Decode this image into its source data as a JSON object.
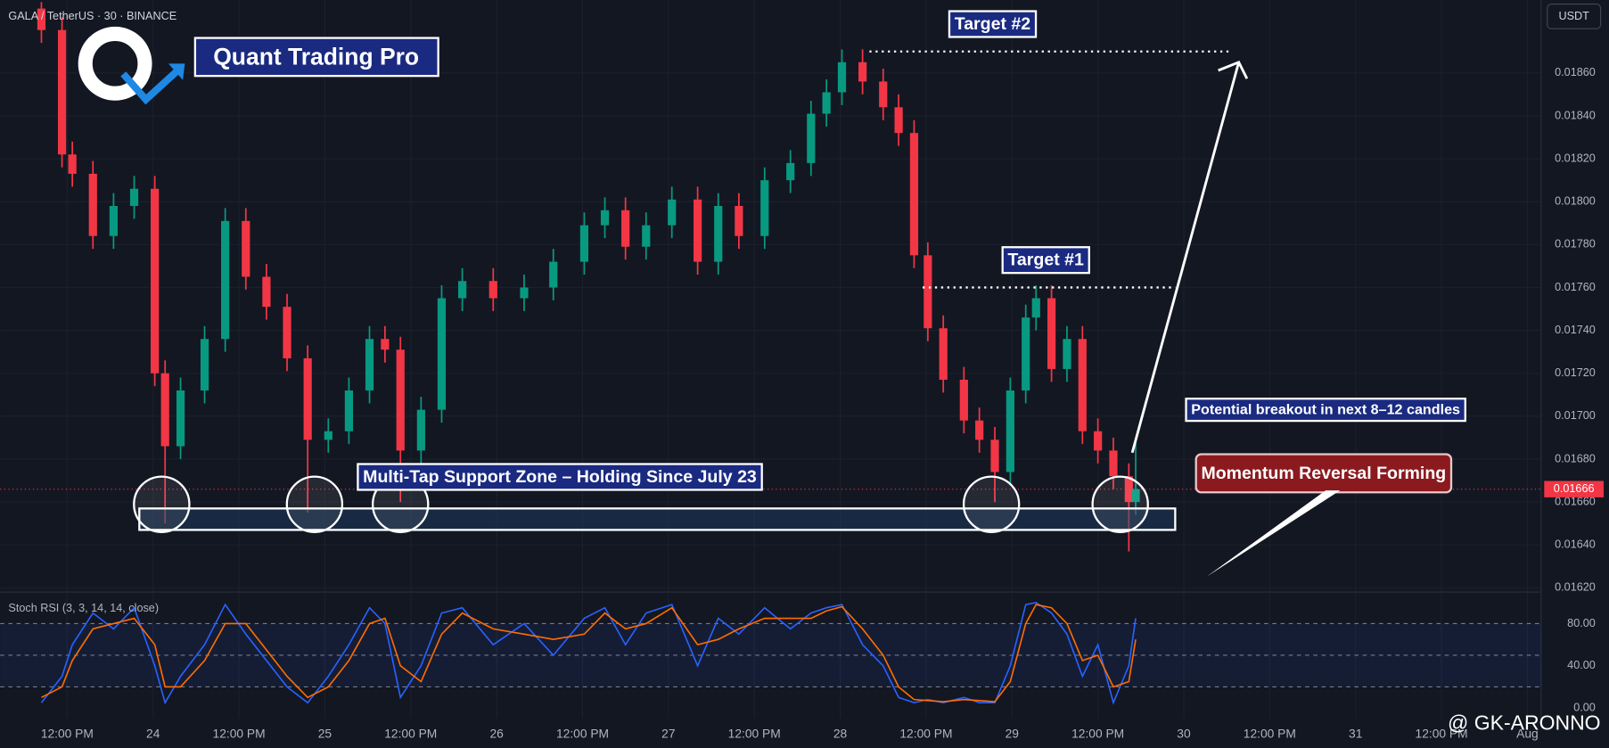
{
  "chart_data": [
    {
      "type": "candlestick",
      "title": "GALA / TetherUS · 30 · BINANCE",
      "brand": "Quant Trading Pro",
      "currency": "USDT",
      "watermark": "@ GK-ARONNO",
      "x": [
        23.35,
        23.47,
        23.53,
        23.65,
        23.77,
        23.89,
        24.01,
        24.07,
        24.16,
        24.3,
        24.42,
        24.54,
        24.66,
        24.78,
        24.9,
        25.02,
        25.14,
        25.26,
        25.35,
        25.44,
        25.56,
        25.68,
        25.8,
        25.98,
        26.16,
        26.33,
        26.51,
        26.63,
        26.75,
        26.87,
        27.02,
        27.17,
        27.29,
        27.41,
        27.56,
        27.71,
        27.83,
        27.92,
        28.01,
        28.13,
        28.25,
        28.34,
        28.43,
        28.51,
        28.6,
        28.72,
        28.81,
        28.9,
        28.99,
        29.08,
        29.14,
        29.23,
        29.32,
        29.41,
        29.5,
        29.59,
        29.68,
        29.72
      ],
      "open": [
        0.0189,
        0.0188,
        0.01822,
        0.01813,
        0.01784,
        0.01798,
        0.01806,
        0.0172,
        0.01686,
        0.01712,
        0.01736,
        0.01791,
        0.01765,
        0.01751,
        0.01727,
        0.01689,
        0.01693,
        0.01712,
        0.01736,
        0.01731,
        0.01684,
        0.01703,
        0.01755,
        0.01763,
        0.01755,
        0.0176,
        0.01772,
        0.01789,
        0.01796,
        0.01779,
        0.01789,
        0.01801,
        0.01772,
        0.01798,
        0.01784,
        0.0181,
        0.01818,
        0.01841,
        0.01851,
        0.01865,
        0.01856,
        0.01844,
        0.01832,
        0.01775,
        0.01741,
        0.01717,
        0.01698,
        0.01689,
        0.01674,
        0.01712,
        0.01746,
        0.01755,
        0.01722,
        0.01736,
        0.01693,
        0.01684,
        0.01672,
        0.0166
      ],
      "high": [
        0.01893,
        0.01886,
        0.01828,
        0.01819,
        0.01804,
        0.01812,
        0.01812,
        0.01726,
        0.01718,
        0.01742,
        0.01797,
        0.01797,
        0.01771,
        0.01757,
        0.01733,
        0.01699,
        0.01718,
        0.01742,
        0.01742,
        0.01737,
        0.01709,
        0.01761,
        0.01769,
        0.01769,
        0.01766,
        0.01778,
        0.01795,
        0.01802,
        0.01802,
        0.01795,
        0.01807,
        0.01807,
        0.01804,
        0.01804,
        0.01816,
        0.01824,
        0.01847,
        0.01857,
        0.01871,
        0.01871,
        0.01862,
        0.0185,
        0.01838,
        0.01781,
        0.01747,
        0.01723,
        0.01704,
        0.01695,
        0.01718,
        0.01752,
        0.01761,
        0.01761,
        0.01742,
        0.01742,
        0.01699,
        0.0169,
        0.01678,
        0.0169
      ],
      "low": [
        0.01874,
        0.01816,
        0.01807,
        0.01778,
        0.01778,
        0.01792,
        0.01714,
        0.0165,
        0.0168,
        0.01706,
        0.0173,
        0.01759,
        0.01745,
        0.01721,
        0.01655,
        0.01683,
        0.01687,
        0.01706,
        0.01725,
        0.0166,
        0.01678,
        0.01697,
        0.01749,
        0.01749,
        0.01749,
        0.01754,
        0.01766,
        0.01783,
        0.01773,
        0.01773,
        0.01783,
        0.01766,
        0.01766,
        0.01778,
        0.01778,
        0.01804,
        0.01812,
        0.01835,
        0.01845,
        0.0185,
        0.01838,
        0.01826,
        0.01769,
        0.01735,
        0.01711,
        0.01692,
        0.01683,
        0.0166,
        0.01668,
        0.01706,
        0.0174,
        0.01716,
        0.01716,
        0.01687,
        0.01678,
        0.01666,
        0.01637,
        0.01654
      ],
      "close": [
        0.0188,
        0.01822,
        0.01813,
        0.01784,
        0.01798,
        0.01806,
        0.0172,
        0.01686,
        0.01712,
        0.01736,
        0.01791,
        0.01765,
        0.01751,
        0.01727,
        0.01689,
        0.01693,
        0.01712,
        0.01736,
        0.01731,
        0.01684,
        0.01703,
        0.01755,
        0.01763,
        0.01755,
        0.0176,
        0.01772,
        0.01789,
        0.01796,
        0.01779,
        0.01789,
        0.01801,
        0.01772,
        0.01798,
        0.01784,
        0.0181,
        0.01818,
        0.01841,
        0.01851,
        0.01865,
        0.01856,
        0.01844,
        0.01832,
        0.01775,
        0.01741,
        0.01717,
        0.01698,
        0.01689,
        0.01674,
        0.01712,
        0.01746,
        0.01755,
        0.01722,
        0.01736,
        0.01693,
        0.01684,
        0.01672,
        0.0166,
        0.01666
      ],
      "up_color": "#089981",
      "down_color": "#f23645",
      "xlim": [
        23.11,
        32.08
      ],
      "xticks": [
        {
          "value": 23.5,
          "label": "12:00 PM"
        },
        24,
        {
          "value": 24.5,
          "label": "12:00 PM"
        },
        25,
        {
          "value": 25.5,
          "label": "12:00 PM"
        },
        26,
        {
          "value": 26.5,
          "label": "12:00 PM"
        },
        27,
        {
          "value": 27.5,
          "label": "12:00 PM"
        },
        28,
        {
          "value": 28.5,
          "label": "12:00 PM"
        },
        29,
        {
          "value": 29.5,
          "label": "12:00 PM"
        },
        30,
        {
          "value": 30.5,
          "label": "12:00 PM"
        },
        31,
        {
          "value": 31.5,
          "label": "12:00 PM"
        },
        {
          "value": 32,
          "label": "Aug"
        }
      ],
      "ylim": [
        0.01619,
        0.01894
      ],
      "yticks": [
        {
          "value": 0.0162,
          "label": "0.01620"
        },
        {
          "value": 0.0164,
          "label": "0.01640"
        },
        {
          "value": 0.0166,
          "label": "0.01660"
        },
        {
          "value": 0.0168,
          "label": "0.01680"
        },
        {
          "value": 0.017,
          "label": "0.01700"
        },
        {
          "value": 0.0172,
          "label": "0.01720"
        },
        {
          "value": 0.0174,
          "label": "0.01740"
        },
        {
          "value": 0.0176,
          "label": "0.01760"
        },
        {
          "value": 0.0178,
          "label": "0.01780"
        },
        {
          "value": 0.018,
          "label": "0.01800"
        },
        {
          "value": 0.0182,
          "label": "0.01820"
        },
        {
          "value": 0.0184,
          "label": "0.01840"
        },
        {
          "value": 0.0186,
          "label": "0.01860"
        }
      ],
      "grid": true,
      "last_price": 0.01666,
      "targets": [
        {
          "label": "Target #2",
          "value": 0.0187,
          "x_range": [
            28.17,
            30.27
          ]
        },
        {
          "label": "Target #1",
          "value": 0.0176,
          "x_range": [
            28.48,
            29.95
          ]
        }
      ],
      "support_zone": {
        "label": "Multi-Tap Support Zone – Holding Since July 23",
        "range": [
          0.01647,
          0.01657
        ],
        "x_range": [
          23.92,
          29.95
        ],
        "touches": [
          24.05,
          24.94,
          25.44,
          28.88,
          29.63
        ]
      },
      "breakout_arrow": {
        "label": "Potential breakout in next 8–12 candles",
        "from": [
          29.7,
          0.01683
        ],
        "to": [
          30.32,
          0.01865
        ]
      },
      "reversal_label": "Momentum Reversal Forming"
    },
    {
      "type": "line",
      "title": "Stoch RSI (3, 3, 14, 14, close)",
      "x": [
        23.35,
        23.47,
        23.53,
        23.65,
        23.77,
        23.89,
        24.01,
        24.07,
        24.16,
        24.3,
        24.42,
        24.54,
        24.66,
        24.78,
        24.9,
        25.02,
        25.14,
        25.26,
        25.35,
        25.44,
        25.56,
        25.68,
        25.8,
        25.98,
        26.16,
        26.33,
        26.51,
        26.63,
        26.75,
        26.87,
        27.02,
        27.17,
        27.29,
        27.41,
        27.56,
        27.71,
        27.83,
        27.92,
        28.01,
        28.13,
        28.25,
        28.34,
        28.43,
        28.51,
        28.6,
        28.72,
        28.81,
        28.9,
        28.99,
        29.08,
        29.14,
        29.23,
        29.32,
        29.41,
        29.5,
        29.59,
        29.68,
        29.72
      ],
      "series": [
        {
          "color": "#2962ff",
          "values": [
            5,
            30,
            60,
            90,
            75,
            95,
            40,
            5,
            30,
            60,
            98,
            70,
            45,
            20,
            5,
            30,
            60,
            95,
            80,
            10,
            40,
            90,
            95,
            60,
            80,
            50,
            85,
            95,
            60,
            90,
            98,
            40,
            85,
            70,
            95,
            75,
            90,
            95,
            98,
            60,
            40,
            10,
            5,
            8,
            5,
            10,
            5,
            5,
            40,
            98,
            100,
            90,
            70,
            30,
            60,
            5,
            40,
            85
          ]
        },
        {
          "color": "#ff6d00",
          "values": [
            10,
            20,
            45,
            75,
            80,
            85,
            60,
            20,
            20,
            45,
            80,
            80,
            55,
            30,
            10,
            20,
            45,
            80,
            85,
            40,
            25,
            70,
            90,
            75,
            70,
            65,
            70,
            90,
            75,
            80,
            95,
            60,
            65,
            75,
            85,
            85,
            85,
            92,
            96,
            75,
            50,
            20,
            8,
            7,
            6,
            8,
            7,
            6,
            25,
            80,
            98,
            95,
            80,
            45,
            50,
            20,
            25,
            65
          ]
        }
      ],
      "xlim": [
        23.11,
        32.08
      ],
      "ylim": [
        0,
        107
      ],
      "yticks": [
        {
          "value": 0,
          "label": "0.00"
        },
        {
          "value": 40,
          "label": "40.00"
        },
        {
          "value": 80,
          "label": "80.00"
        }
      ],
      "levels": [
        20,
        50,
        80
      ]
    }
  ]
}
